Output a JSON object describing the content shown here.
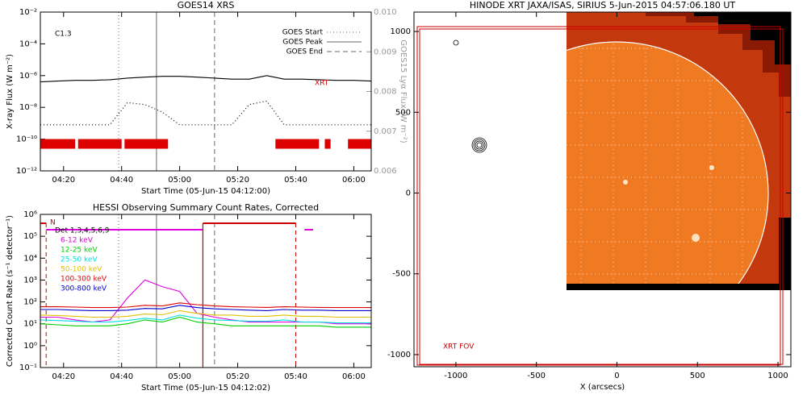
{
  "chart_data": [
    {
      "type": "line",
      "title": "GOES14 XRS",
      "xlabel": "Start Time (05-Jun-15 04:12:00)",
      "ylabel": "X-ray Flux (W m⁻²)",
      "y2label": "GOES15 Lyα Flux (W m⁻²)",
      "annotation": "C1.3",
      "ylog": true,
      "xlim": [
        "04:12",
        "06:06"
      ],
      "xticks": [
        "04:20",
        "04:40",
        "05:00",
        "05:20",
        "05:40",
        "06:00"
      ],
      "ylim": [
        1e-12,
        0.01
      ],
      "yticks": [
        {
          "value": 1e-12,
          "label": "10⁻¹²"
        },
        {
          "value": 1e-10,
          "label": "10⁻¹⁰"
        },
        {
          "value": 1e-08,
          "label": "10⁻⁸"
        },
        {
          "value": 1e-06,
          "label": "10⁻⁶"
        },
        {
          "value": 0.0001,
          "label": "10⁻⁴"
        },
        {
          "value": 0.01,
          "label": "10⁻²"
        }
      ],
      "y2lim": [
        0.006,
        0.01
      ],
      "y2ticks": [
        0.006,
        0.007,
        0.008,
        0.009,
        {
          "value": 0.01,
          "label": "0.010"
        }
      ],
      "legend": "upper right",
      "x": [
        "04:12",
        "04:18",
        "04:24",
        "04:30",
        "04:36",
        "04:42",
        "04:48",
        "04:54",
        "05:00",
        "05:06",
        "05:12",
        "05:18",
        "05:24",
        "05:30",
        "05:36",
        "05:42",
        "05:48",
        "05:54",
        "06:00",
        "06:06"
      ],
      "series": [
        {
          "color": "#000000",
          "dash": "solid",
          "values": [
            4e-07,
            4.5e-07,
            5e-07,
            5e-07,
            5.5e-07,
            7e-07,
            8e-07,
            9e-07,
            9e-07,
            8e-07,
            7e-07,
            6e-07,
            6e-07,
            1e-06,
            6e-07,
            6e-07,
            5.5e-07,
            5e-07,
            5e-07,
            4.5e-07
          ]
        },
        {
          "color": "#000000",
          "dash": "dotted",
          "values": [
            8e-10,
            8e-10,
            8e-10,
            8e-10,
            8e-10,
            2e-08,
            1.5e-08,
            5e-09,
            8e-10,
            8e-10,
            8e-10,
            8e-10,
            1.5e-08,
            2.5e-08,
            8e-10,
            8e-10,
            8e-10,
            8e-10,
            8e-10,
            8e-10
          ]
        }
      ],
      "events": [
        {
          "name": "GOES Start",
          "x": "04:39",
          "dash": "dotted"
        },
        {
          "name": "GOES Peak",
          "x": "04:52",
          "dash": "solid"
        },
        {
          "name": "GOES End",
          "x": "05:12",
          "dash": "dashed"
        }
      ],
      "xrt": {
        "name": "XRT",
        "color": "#dd0000",
        "y": 5e-11,
        "intervals": [
          [
            "04:12",
            "04:24"
          ],
          [
            "04:25",
            "04:40"
          ],
          [
            "04:41",
            "04:56"
          ],
          [
            "05:33",
            "05:48"
          ],
          [
            "05:50",
            "05:52"
          ],
          [
            "05:58",
            "06:06"
          ]
        ]
      }
    },
    {
      "type": "line",
      "title": "HESSI Observing Summary Count Rates, Corrected",
      "xlabel": "Start Time (05-Jun-15 04:12:02)",
      "ylabel": "Corrected Count Rate (s⁻¹ detector⁻¹)",
      "detectors": "Det 1,3,4,5,6,9",
      "ylog": true,
      "xlim": [
        "04:12",
        "06:06"
      ],
      "xticks": [
        "04:20",
        "04:40",
        "05:00",
        "05:20",
        "05:40",
        "06:00"
      ],
      "ylim": [
        0.1,
        1000000
      ],
      "yticks": [
        {
          "value": 0.1,
          "label": "10⁻¹"
        },
        {
          "value": 1,
          "label": "10⁰"
        },
        {
          "value": 10,
          "label": "10¹"
        },
        {
          "value": 100,
          "label": "10²"
        },
        {
          "value": 1000,
          "label": "10³"
        },
        {
          "value": 10000,
          "label": "10⁴"
        },
        {
          "value": 100000,
          "label": "10⁵"
        },
        {
          "value": 1000000,
          "label": "10⁶"
        }
      ],
      "legend": "upper left",
      "x": [
        "04:12",
        "04:18",
        "04:24",
        "04:30",
        "04:36",
        "04:42",
        "04:48",
        "04:54",
        "05:00",
        "05:06",
        "05:12",
        "05:18",
        "05:24",
        "05:30",
        "05:36",
        "05:42",
        "05:48",
        "05:54",
        "06:00",
        "06:06"
      ],
      "series": [
        {
          "name": "6-12 keV",
          "color": "#e000e0",
          "values": [
            20,
            20,
            15,
            12,
            15,
            150,
            1000,
            500,
            300,
            30,
            20,
            15,
            12,
            12,
            12,
            12,
            12,
            10,
            10,
            10
          ]
        },
        {
          "name": "12-25 keV",
          "color": "#00cc00",
          "values": [
            10,
            9,
            8,
            8,
            8,
            10,
            15,
            12,
            20,
            12,
            10,
            8,
            8,
            8,
            8,
            8,
            8,
            7,
            7,
            7
          ]
        },
        {
          "name": "25-50 keV",
          "color": "#00e0e0",
          "values": [
            15,
            14,
            13,
            12,
            12,
            14,
            18,
            15,
            25,
            18,
            15,
            14,
            13,
            13,
            15,
            12,
            12,
            11,
            11,
            11
          ]
        },
        {
          "name": "50-100 keV",
          "color": "#e0c000",
          "values": [
            25,
            24,
            22,
            20,
            20,
            22,
            28,
            26,
            40,
            30,
            25,
            25,
            22,
            22,
            25,
            22,
            22,
            20,
            20,
            20
          ]
        },
        {
          "name": "100-300 keV",
          "color": "#e00000",
          "values": [
            60,
            60,
            58,
            55,
            55,
            58,
            70,
            65,
            90,
            75,
            65,
            60,
            58,
            56,
            60,
            58,
            56,
            55,
            55,
            55
          ]
        },
        {
          "name": "300-800 keV",
          "color": "#0000d0",
          "values": [
            45,
            45,
            42,
            40,
            40,
            42,
            50,
            48,
            70,
            55,
            48,
            45,
            42,
            40,
            45,
            42,
            42,
            40,
            40,
            40
          ]
        }
      ],
      "night_label": "N",
      "night": [
        [
          "04:12",
          "04:14"
        ],
        [
          "05:08",
          "05:40"
        ]
      ],
      "flags": {
        "color": "#e000e0",
        "y": 200000,
        "intervals": [
          [
            "04:14",
            "05:08"
          ],
          [
            "05:43",
            "05:46"
          ]
        ]
      }
    },
    {
      "type": "image",
      "title": "HINODE XRT JAXA/ISAS, SIRIUS  5-Jun-2015 04:57:06.180 UT",
      "xlabel": "X (arcsecs)",
      "annotation": "XRT FOV",
      "xlim": [
        -1260,
        1080
      ],
      "xticks": [
        -1000,
        -500,
        0,
        500,
        1000
      ],
      "ylim": [
        -1075,
        1120
      ],
      "yticks": [
        -1000,
        -500,
        0,
        500,
        1000
      ]
    }
  ]
}
